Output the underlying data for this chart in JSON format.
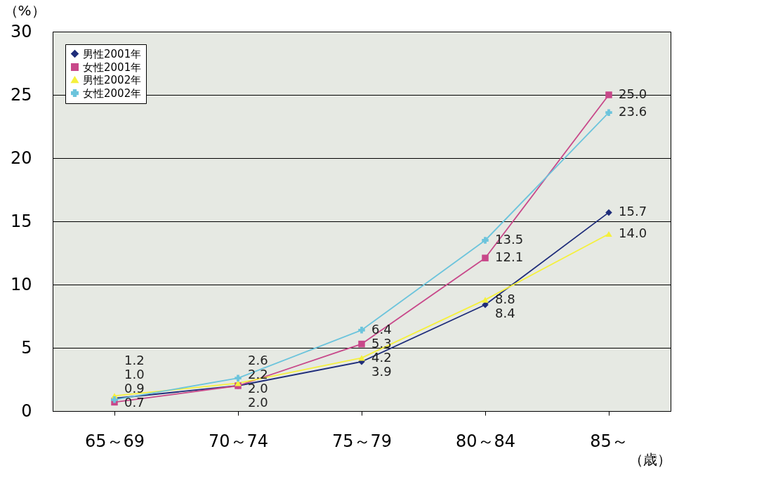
{
  "chart_data": {
    "type": "line",
    "ylabel": "（%）",
    "xlabel": "（歳）",
    "categories": [
      "65～69",
      "70～74",
      "75～79",
      "80～84",
      "85～"
    ],
    "series": [
      {
        "name": "男性2001年",
        "color": "#1f2d7a",
        "marker": "diamond",
        "values": [
          1.0,
          2.0,
          3.9,
          8.4,
          15.7
        ],
        "value_labels": [
          "1.0",
          "2.0",
          "3.9",
          "8.4",
          "15.7"
        ]
      },
      {
        "name": "女性2001年",
        "color": "#c8488a",
        "marker": "square",
        "values": [
          0.7,
          2.0,
          5.3,
          12.1,
          25.0
        ],
        "value_labels": [
          "0.7",
          "2.0",
          "5.3",
          "12.1",
          "25.0"
        ]
      },
      {
        "name": "男性2002年",
        "color": "#f5f03c",
        "marker": "triangle",
        "values": [
          1.2,
          2.2,
          4.2,
          8.8,
          14.0
        ],
        "value_labels": [
          "1.2",
          "2.2",
          "4.2",
          "8.8",
          "14.0"
        ]
      },
      {
        "name": "女性2002年",
        "color": "#6cc4dc",
        "marker": "cross",
        "values": [
          0.9,
          2.6,
          6.4,
          13.5,
          23.6
        ],
        "value_labels": [
          "0.9",
          "2.6",
          "6.4",
          "13.5",
          "23.6"
        ]
      }
    ],
    "ylim": [
      0,
      30
    ],
    "yticks": [
      0,
      5,
      10,
      15,
      20,
      25,
      30
    ],
    "grid": "y",
    "legend": "top left"
  }
}
